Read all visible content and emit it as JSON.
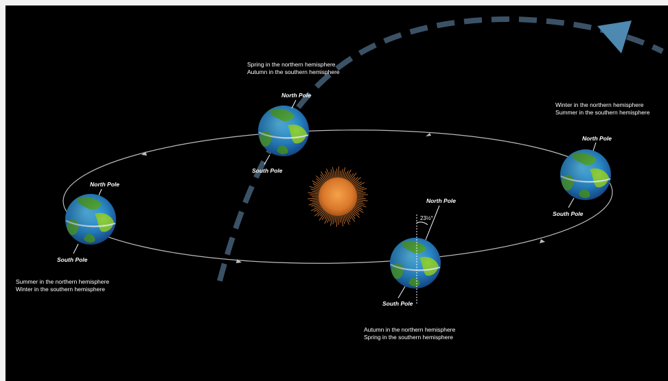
{
  "colors": {
    "background": "#000000",
    "frame": "#f2f2f2",
    "orbit": "#bdbdbd",
    "dashed_path": "#3b5266",
    "arrow_head": "#4d89b0",
    "sun": "#d9782b",
    "ocean": "#2a8fd4",
    "land": "#59b53a"
  },
  "sun": {
    "icon": "sun-icon"
  },
  "positions": {
    "top": {
      "caption_line1": "Spring in the northern hemisphere",
      "caption_line2": "Autumn in  the southern hemisphere",
      "north_label": "North Pole",
      "south_label": "South Pole"
    },
    "right": {
      "caption_line1": "Winter in the northern hemisphere",
      "caption_line2": "Summer in  the southern hemisphere",
      "north_label": "North Pole",
      "south_label": "South Pole"
    },
    "left": {
      "caption_line1": "Summer in the northern hemisphere",
      "caption_line2": "Winter in  the southern hemisphere",
      "north_label": "North Pole",
      "south_label": "South Pole"
    },
    "bottom": {
      "caption_line1": "Autumn in the northern hemisphere",
      "caption_line2": "Spring in  the southern hemisphere",
      "north_label": "North Pole",
      "south_label": "South Pole"
    }
  },
  "tilt_label": "23½°"
}
